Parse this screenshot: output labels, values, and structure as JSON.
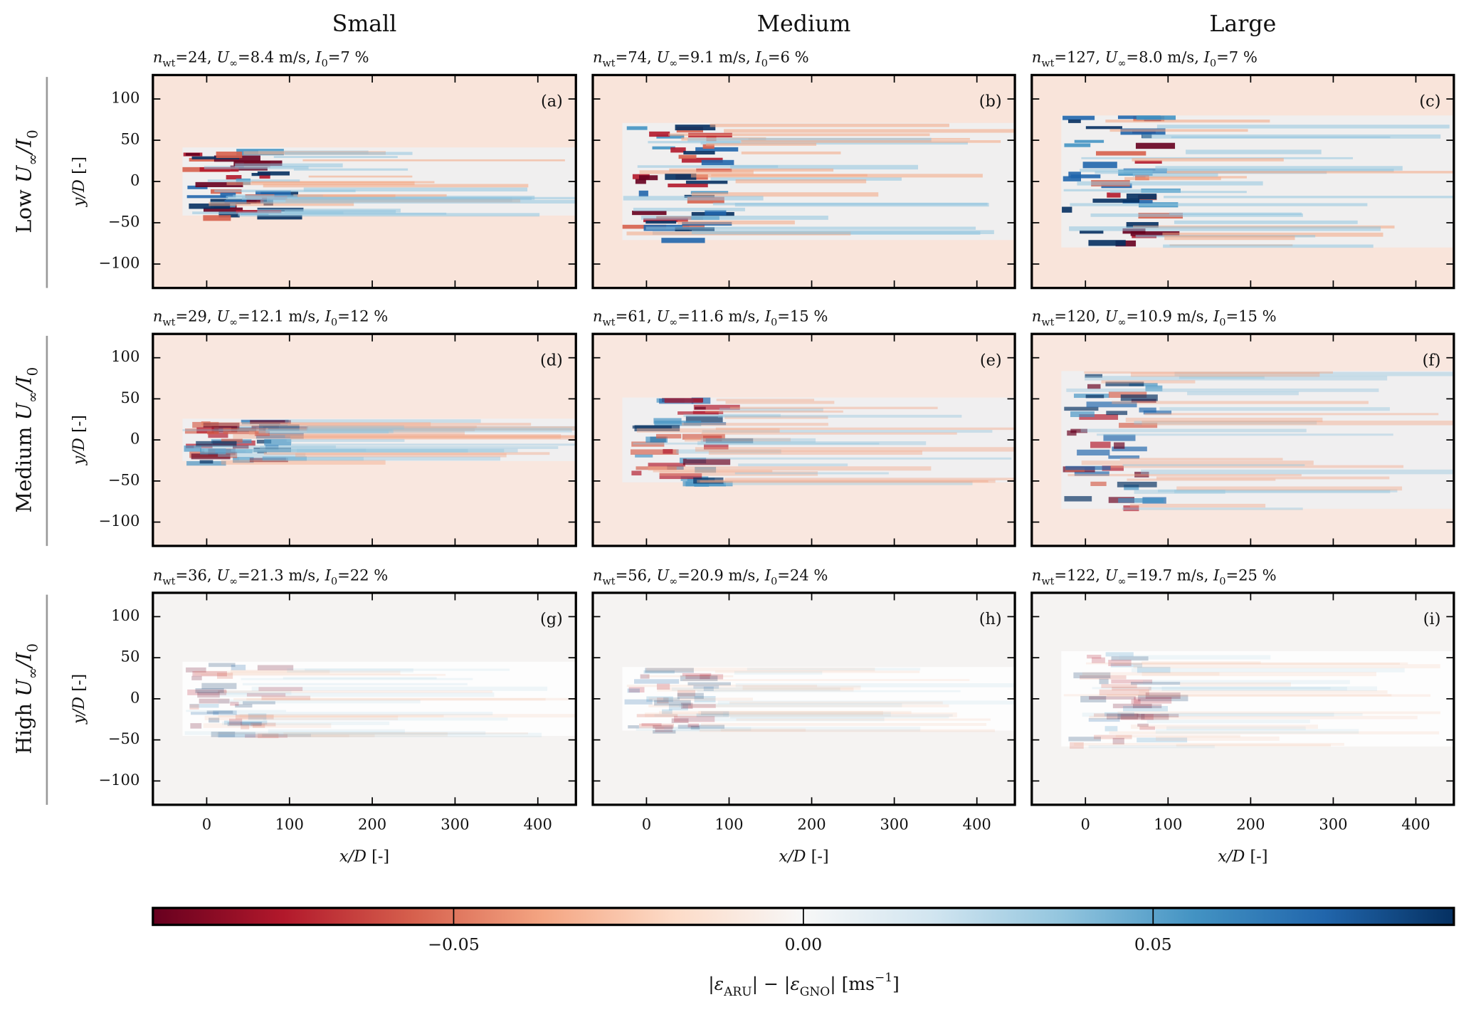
{
  "chart_data": {
    "type": "heatmap",
    "column_titles": [
      "Small",
      "Medium",
      "Large"
    ],
    "row_labels": [
      [
        {
          "text": "Low "
        },
        {
          "ital": "U"
        },
        {
          "sub": "∞"
        },
        {
          "ital": "/I"
        },
        {
          "sub": "0"
        }
      ],
      [
        {
          "text": "Medium "
        },
        {
          "ital": "U"
        },
        {
          "sub": "∞"
        },
        {
          "ital": "/I"
        },
        {
          "sub": "0"
        }
      ],
      [
        {
          "text": "High "
        },
        {
          "ital": "U"
        },
        {
          "sub": "∞"
        },
        {
          "ital": "/I"
        },
        {
          "sub": "0"
        }
      ]
    ],
    "panels": [
      {
        "letter": "(a)",
        "header": [
          {
            "ital": "n"
          },
          {
            "sub": "wt"
          },
          {
            "text": "=24, "
          },
          {
            "ital": "U"
          },
          {
            "sub": "∞"
          },
          {
            "text": "=8.4 m/s, "
          },
          {
            "ital": "I"
          },
          {
            "sub": "0"
          },
          {
            "text": "=7 %"
          }
        ]
      },
      {
        "letter": "(b)",
        "header": [
          {
            "ital": "n"
          },
          {
            "sub": "wt"
          },
          {
            "text": "=74, "
          },
          {
            "ital": "U"
          },
          {
            "sub": "∞"
          },
          {
            "text": "=9.1 m/s, "
          },
          {
            "ital": "I"
          },
          {
            "sub": "0"
          },
          {
            "text": "=6 %"
          }
        ]
      },
      {
        "letter": "(c)",
        "header": [
          {
            "ital": "n"
          },
          {
            "sub": "wt"
          },
          {
            "text": "=127, "
          },
          {
            "ital": "U"
          },
          {
            "sub": "∞"
          },
          {
            "text": "=8.0 m/s, "
          },
          {
            "ital": "I"
          },
          {
            "sub": "0"
          },
          {
            "text": "=7 %"
          }
        ]
      },
      {
        "letter": "(d)",
        "header": [
          {
            "ital": "n"
          },
          {
            "sub": "wt"
          },
          {
            "text": "=29, "
          },
          {
            "ital": "U"
          },
          {
            "sub": "∞"
          },
          {
            "text": "=12.1 m/s, "
          },
          {
            "ital": "I"
          },
          {
            "sub": "0"
          },
          {
            "text": "=12 %"
          }
        ]
      },
      {
        "letter": "(e)",
        "header": [
          {
            "ital": "n"
          },
          {
            "sub": "wt"
          },
          {
            "text": "=61, "
          },
          {
            "ital": "U"
          },
          {
            "sub": "∞"
          },
          {
            "text": "=11.6 m/s, "
          },
          {
            "ital": "I"
          },
          {
            "sub": "0"
          },
          {
            "text": "=15 %"
          }
        ]
      },
      {
        "letter": "(f)",
        "header": [
          {
            "ital": "n"
          },
          {
            "sub": "wt"
          },
          {
            "text": "=120, "
          },
          {
            "ital": "U"
          },
          {
            "sub": "∞"
          },
          {
            "text": "=10.9 m/s, "
          },
          {
            "ital": "I"
          },
          {
            "sub": "0"
          },
          {
            "text": "=15 %"
          }
        ]
      },
      {
        "letter": "(g)",
        "header": [
          {
            "ital": "n"
          },
          {
            "sub": "wt"
          },
          {
            "text": "=36, "
          },
          {
            "ital": "U"
          },
          {
            "sub": "∞"
          },
          {
            "text": "=21.3 m/s, "
          },
          {
            "ital": "I"
          },
          {
            "sub": "0"
          },
          {
            "text": "=22 %"
          }
        ]
      },
      {
        "letter": "(h)",
        "header": [
          {
            "ital": "n"
          },
          {
            "sub": "wt"
          },
          {
            "text": "=56, "
          },
          {
            "ital": "U"
          },
          {
            "sub": "∞"
          },
          {
            "text": "=20.9 m/s, "
          },
          {
            "ital": "I"
          },
          {
            "sub": "0"
          },
          {
            "text": "=24 %"
          }
        ]
      },
      {
        "letter": "(i)",
        "header": [
          {
            "ital": "n"
          },
          {
            "sub": "wt"
          },
          {
            "text": "=122, "
          },
          {
            "ital": "U"
          },
          {
            "sub": "∞"
          },
          {
            "text": "=19.7 m/s, "
          },
          {
            "ital": "I"
          },
          {
            "sub": "0"
          },
          {
            "text": "=25 %"
          }
        ]
      }
    ],
    "xlabel": [
      {
        "ital": "x/D"
      },
      {
        "text": " [-]"
      }
    ],
    "ylabel": [
      {
        "ital": "y/D"
      },
      {
        "text": " [-]"
      }
    ],
    "xlim": [
      -65,
      446
    ],
    "ylim": [
      -129,
      129
    ],
    "xticks": [
      0,
      100,
      200,
      300,
      400
    ],
    "yticks": [
      {
        "value": -100,
        "label": "−100"
      },
      {
        "value": -50,
        "label": "−50"
      },
      0,
      50,
      100
    ],
    "colorbar": {
      "lim": [
        -0.093,
        0.093
      ],
      "ticks": [
        {
          "value": -0.05,
          "label": "−0.05"
        },
        {
          "value": 0,
          "label": "0.00"
        },
        {
          "value": 0.05,
          "label": "0.05"
        }
      ],
      "label": [
        {
          "text": "|"
        },
        {
          "ital": "ε"
        },
        {
          "sub": "ARU"
        },
        {
          "text": "| − |"
        },
        {
          "ital": "ε"
        },
        {
          "sub": "GNO"
        },
        {
          "text": "| [ms"
        },
        {
          "sup": "−1"
        },
        {
          "text": "]"
        }
      ],
      "colormap": [
        "#67001f",
        "#b2182b",
        "#d6604d",
        "#f4a582",
        "#fddbc7",
        "#f7f7f7",
        "#d1e5f0",
        "#92c5de",
        "#4393c3",
        "#2166ac",
        "#053061"
      ]
    }
  }
}
